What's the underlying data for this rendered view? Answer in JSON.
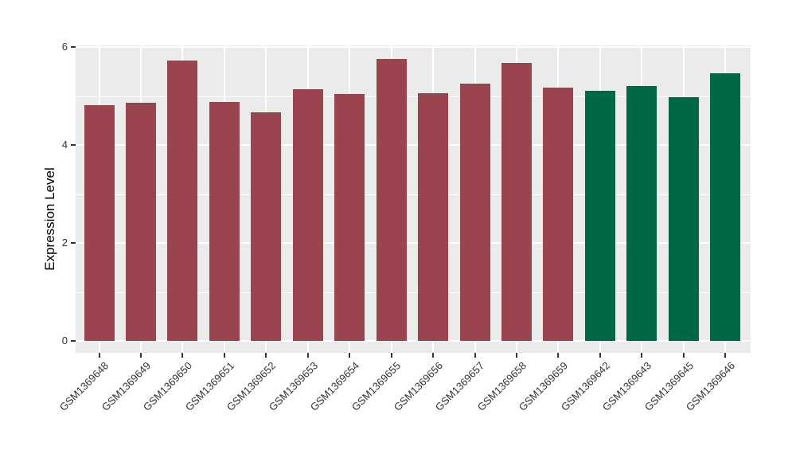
{
  "chart_data": {
    "type": "bar",
    "title": "",
    "xlabel": "",
    "ylabel": "Expression Level",
    "categories": [
      "GSM1369648",
      "GSM1369649",
      "GSM1369650",
      "GSM1369651",
      "GSM1369652",
      "GSM1369653",
      "GSM1369654",
      "GSM1369655",
      "GSM1369656",
      "GSM1369657",
      "GSM1369658",
      "GSM1369659",
      "GSM1369642",
      "GSM1369643",
      "GSM1369645",
      "GSM1369646"
    ],
    "values": [
      4.81,
      4.86,
      5.73,
      4.88,
      4.67,
      5.14,
      5.04,
      5.76,
      5.06,
      5.26,
      5.68,
      5.17,
      5.11,
      5.21,
      4.97,
      5.46
    ],
    "bar_colors": [
      "#9A4450",
      "#9A4450",
      "#9A4450",
      "#9A4450",
      "#9A4450",
      "#9A4450",
      "#9A4450",
      "#9A4450",
      "#9A4450",
      "#9A4450",
      "#9A4450",
      "#9A4450",
      "#026747",
      "#026747",
      "#026747",
      "#026747"
    ],
    "group_colors": {
      "maroon_group": "#9A4450",
      "green_group": "#026747"
    },
    "ylim": [
      0,
      6.3
    ],
    "yticks_major": [
      0,
      2,
      4,
      6
    ],
    "yticks_minor": [
      1,
      3,
      5
    ],
    "ytick_labels": [
      "0",
      "2",
      "4",
      "6"
    ],
    "grid": true,
    "legend": "none",
    "panel_background": "#EBEBEB",
    "grid_color": "#FFFFFF",
    "tick_color": "#333333"
  }
}
